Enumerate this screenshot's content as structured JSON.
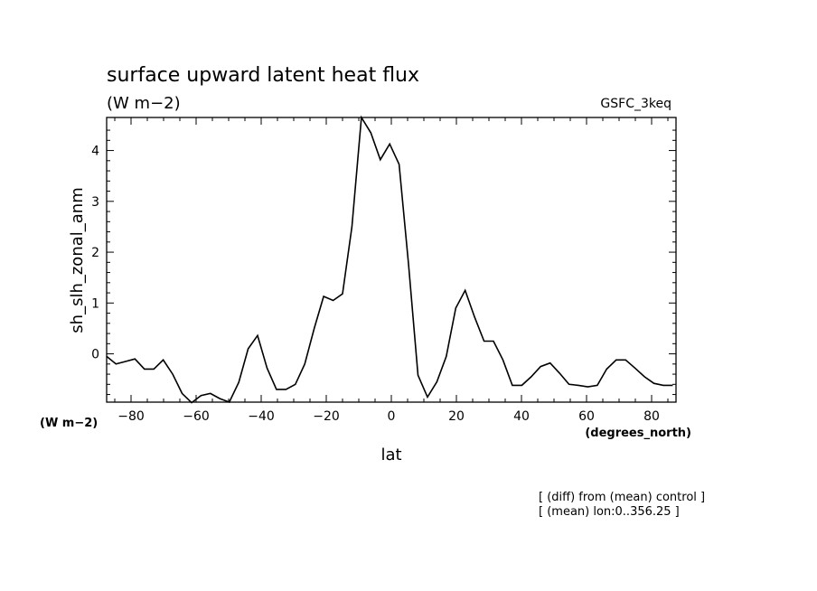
{
  "chart_data": {
    "type": "line",
    "title": "surface upward latent heat flux",
    "units": "(W m−2)",
    "dataset": "GSFC_3keq",
    "ylabel": "sh_slh_zonal_anm",
    "yunits": "(W m−2)",
    "xlabel": "lat",
    "xunits": "(degrees_north)",
    "footnotes": [
      "[ (diff) from (mean) control ]",
      "[ (mean) lon:0..356.25 ]"
    ],
    "xlim": [
      -87.5,
      87.5
    ],
    "ylim": [
      -0.95,
      4.65
    ],
    "xticks": [
      -80,
      -60,
      -40,
      -20,
      0,
      20,
      40,
      60,
      80
    ],
    "yticks": [
      0,
      1,
      2,
      3,
      4
    ],
    "x": [
      -87.5,
      -84.6,
      -81.7,
      -78.8,
      -75.9,
      -73.0,
      -70.1,
      -67.2,
      -64.3,
      -61.4,
      -58.5,
      -55.6,
      -52.7,
      -49.8,
      -46.9,
      -44.0,
      -41.1,
      -38.2,
      -35.3,
      -32.4,
      -29.5,
      -26.6,
      -23.7,
      -20.8,
      -17.9,
      -15.0,
      -12.1,
      -9.2,
      -6.3,
      -3.4,
      -0.5,
      2.4,
      5.3,
      8.2,
      11.1,
      14.0,
      16.9,
      19.8,
      22.7,
      25.6,
      28.5,
      31.4,
      34.3,
      37.2,
      40.1,
      43.0,
      45.9,
      48.8,
      51.7,
      54.6,
      57.5,
      60.4,
      63.3,
      66.2,
      69.1,
      72.0,
      74.9,
      77.8,
      80.7,
      83.6,
      86.5
    ],
    "values": [
      -0.05,
      -0.2,
      -0.15,
      -0.1,
      -0.3,
      -0.3,
      -0.12,
      -0.4,
      -0.78,
      -0.96,
      -0.82,
      -0.78,
      -0.88,
      -0.95,
      -0.56,
      0.1,
      0.36,
      -0.28,
      -0.7,
      -0.7,
      -0.6,
      -0.2,
      0.5,
      1.13,
      1.05,
      1.18,
      2.5,
      4.65,
      4.35,
      3.82,
      4.13,
      3.73,
      1.75,
      -0.42,
      -0.85,
      -0.55,
      -0.05,
      0.9,
      1.25,
      0.72,
      0.25,
      0.25,
      -0.12,
      -0.62,
      -0.62,
      -0.45,
      -0.25,
      -0.18,
      -0.38,
      -0.6,
      -0.62,
      -0.65,
      -0.62,
      -0.3,
      -0.12,
      -0.12,
      -0.28,
      -0.45,
      -0.58,
      -0.62,
      -0.62
    ]
  }
}
